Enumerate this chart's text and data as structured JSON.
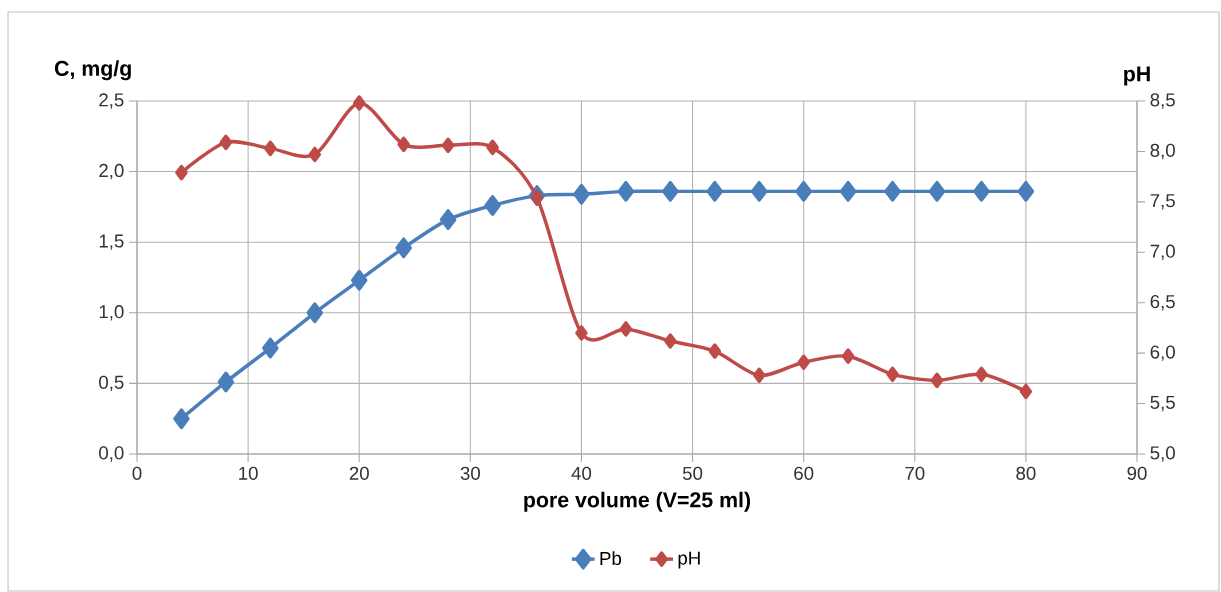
{
  "chart_data": {
    "type": "line",
    "xlabel": "pore volume (V=25 ml)",
    "ylabel": "C, mg/g",
    "y2label": "pH",
    "x": [
      4,
      8,
      12,
      16,
      20,
      24,
      28,
      32,
      36,
      40,
      44,
      48,
      52,
      56,
      60,
      64,
      68,
      72,
      76,
      80
    ],
    "series": [
      {
        "name": "Pb",
        "color": "#4a7ebb",
        "values": [
          0.25,
          0.51,
          0.75,
          1.0,
          1.23,
          1.46,
          1.66,
          1.76,
          1.83,
          1.84,
          1.86,
          1.86,
          1.86,
          1.86,
          1.86,
          1.86,
          1.86,
          1.86,
          1.86,
          1.86
        ]
      },
      {
        "name": "pH",
        "color": "#be4b48",
        "axis": "y2",
        "values": [
          7.79,
          8.09,
          8.03,
          7.97,
          8.48,
          8.07,
          8.06,
          8.04,
          7.54,
          6.2,
          6.24,
          6.12,
          6.02,
          5.78,
          5.91,
          5.97,
          5.79,
          5.73,
          5.79,
          5.62
        ]
      }
    ],
    "xlim": [
      0,
      90
    ],
    "xticks": [
      0,
      10,
      20,
      30,
      40,
      50,
      60,
      70,
      80,
      90
    ],
    "ylim": [
      0,
      2.5
    ],
    "yticks": [
      {
        "value": 0,
        "label": "0,0"
      },
      {
        "value": 0.5,
        "label": "0,5"
      },
      {
        "value": 1,
        "label": "1,0"
      },
      {
        "value": 1.5,
        "label": "1,5"
      },
      {
        "value": 2,
        "label": "2,0"
      },
      {
        "value": 2.5,
        "label": "2,5"
      }
    ],
    "y2lim": [
      5,
      8.5
    ],
    "y2ticks": [
      {
        "value": 5,
        "label": "5,0"
      },
      {
        "value": 5.5,
        "label": "5,5"
      },
      {
        "value": 6,
        "label": "6,0"
      },
      {
        "value": 6.5,
        "label": "6,5"
      },
      {
        "value": 7,
        "label": "7,0"
      },
      {
        "value": 7.5,
        "label": "7,5"
      },
      {
        "value": 8,
        "label": "8,0"
      },
      {
        "value": 8.5,
        "label": "8,5"
      }
    ],
    "grid": true,
    "legend": "bottom",
    "marker": "diamond",
    "line_style": "solid"
  }
}
